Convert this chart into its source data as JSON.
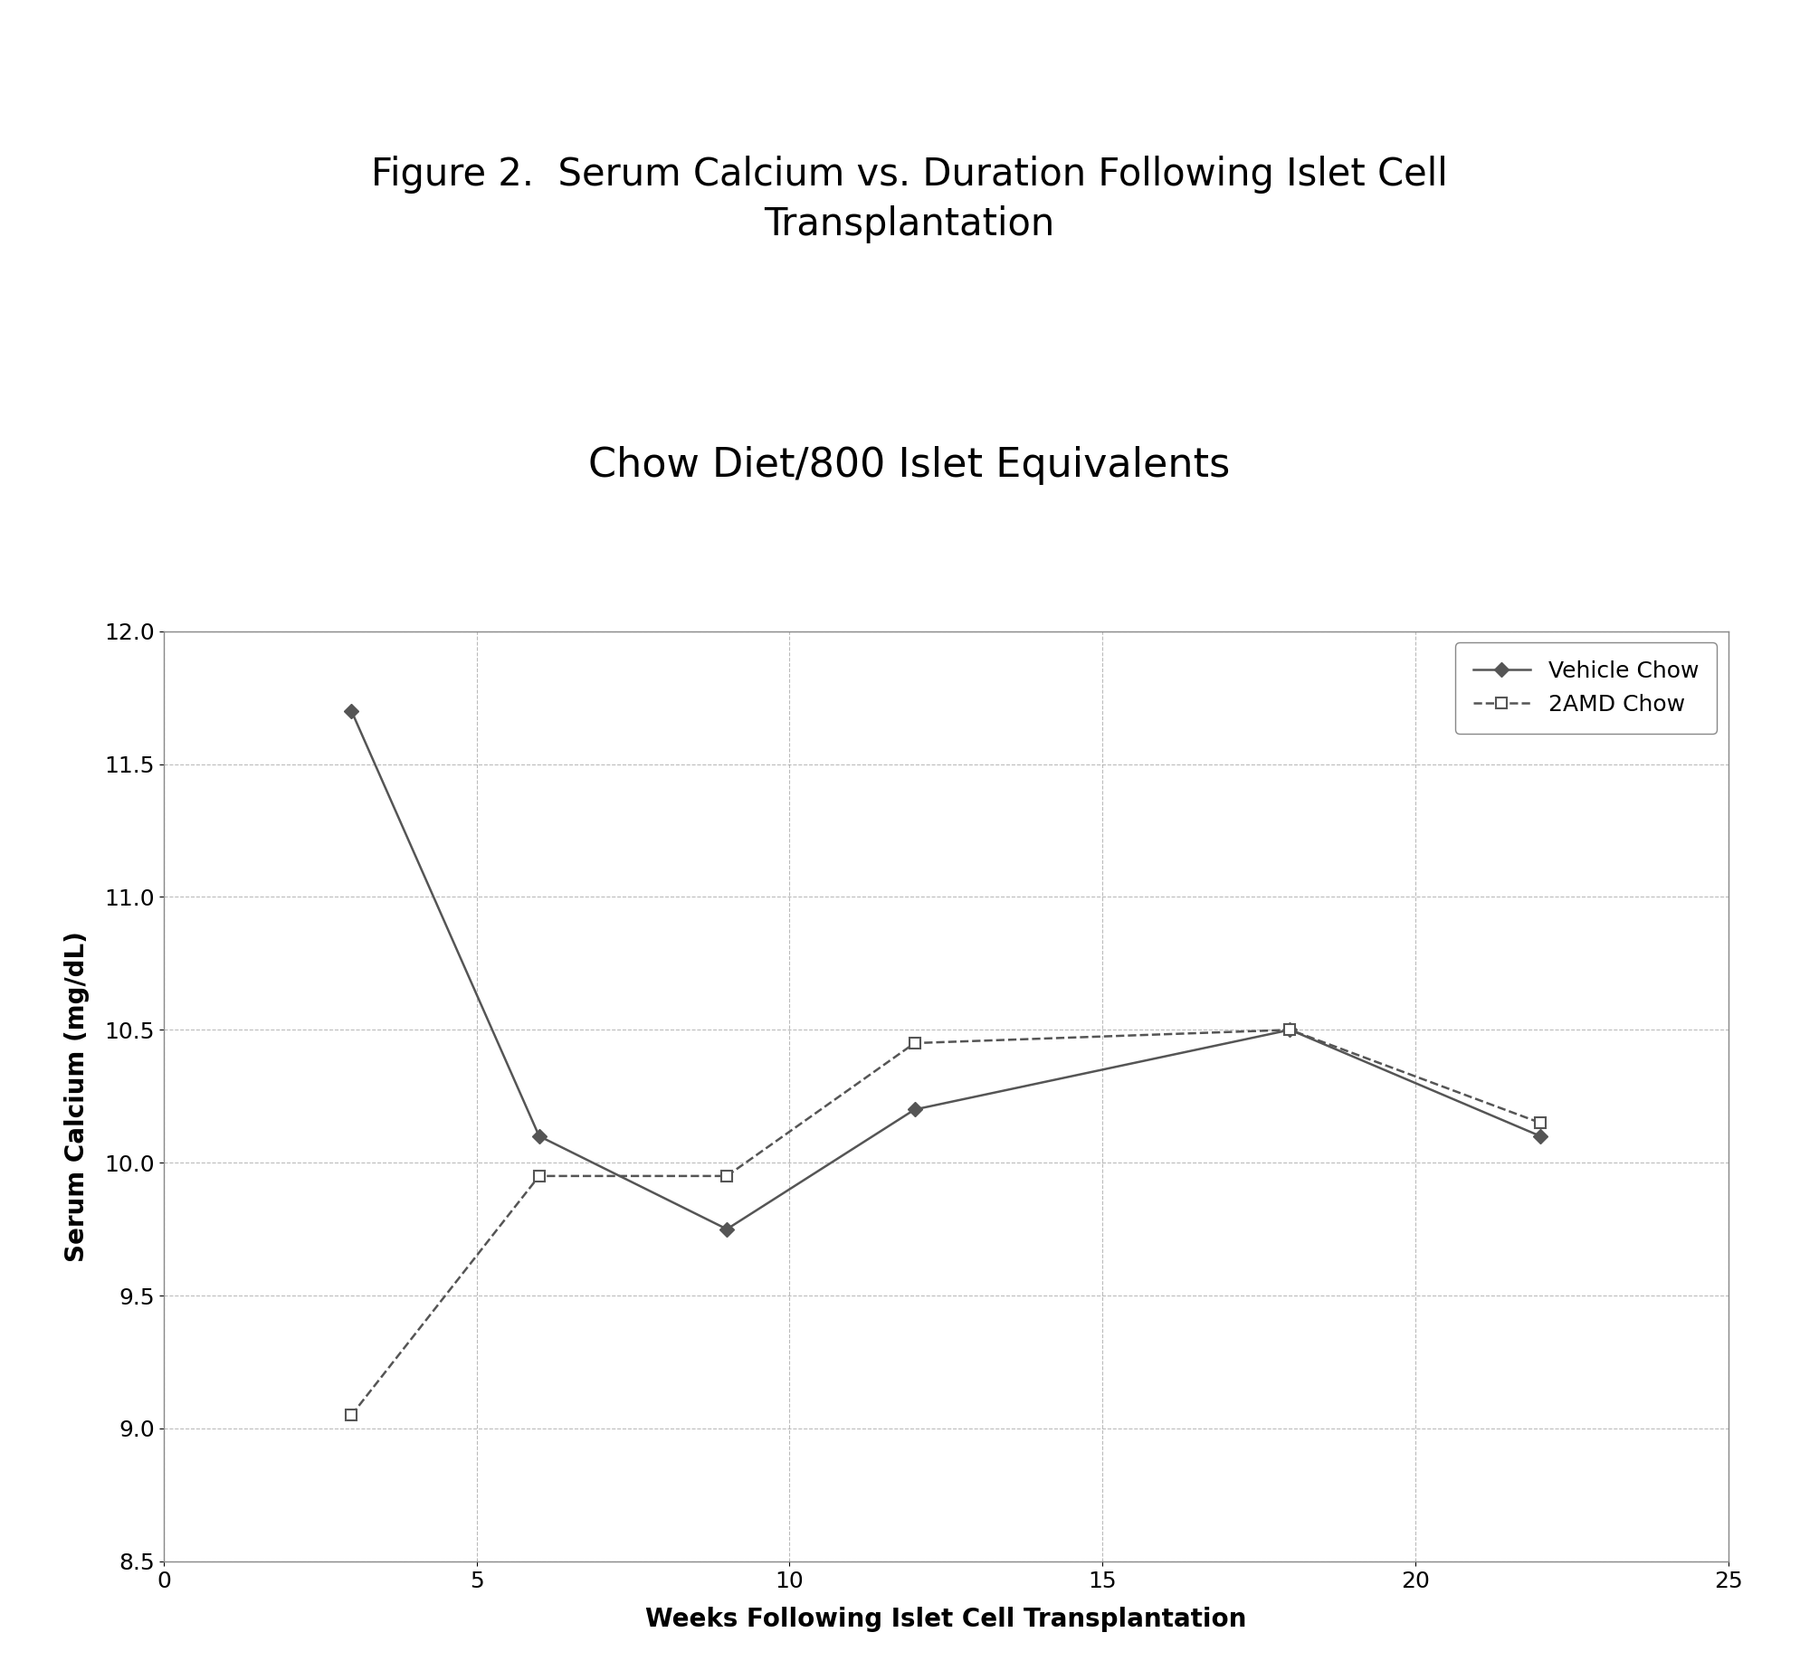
{
  "title": "Figure 2.  Serum Calcium vs. Duration Following Islet Cell\nTransplantation",
  "subtitle": "Chow Diet/800 Islet Equivalents",
  "xlabel": "Weeks Following Islet Cell Transplantation",
  "ylabel": "Serum Calcium (mg/dL)",
  "xlim": [
    0,
    25
  ],
  "ylim": [
    8.5,
    12.0
  ],
  "xticks": [
    0,
    5,
    10,
    15,
    20,
    25
  ],
  "yticks": [
    8.5,
    9.0,
    9.5,
    10.0,
    10.5,
    11.0,
    11.5,
    12.0
  ],
  "vehicle_x": [
    3,
    6,
    9,
    12,
    18,
    22
  ],
  "vehicle_y": [
    11.7,
    10.1,
    9.75,
    10.2,
    10.5,
    10.1
  ],
  "amd_x": [
    3,
    6,
    9,
    12,
    18,
    22
  ],
  "amd_y": [
    9.05,
    9.95,
    9.95,
    10.45,
    10.5,
    10.15
  ],
  "vehicle_label": "Vehicle Chow",
  "amd_label": "2AMD Chow",
  "line_color": "#555555",
  "background_color": "#ffffff",
  "grid_color": "#aaaaaa",
  "title_fontsize": 30,
  "subtitle_fontsize": 32,
  "label_fontsize": 20,
  "tick_fontsize": 18,
  "legend_fontsize": 18
}
